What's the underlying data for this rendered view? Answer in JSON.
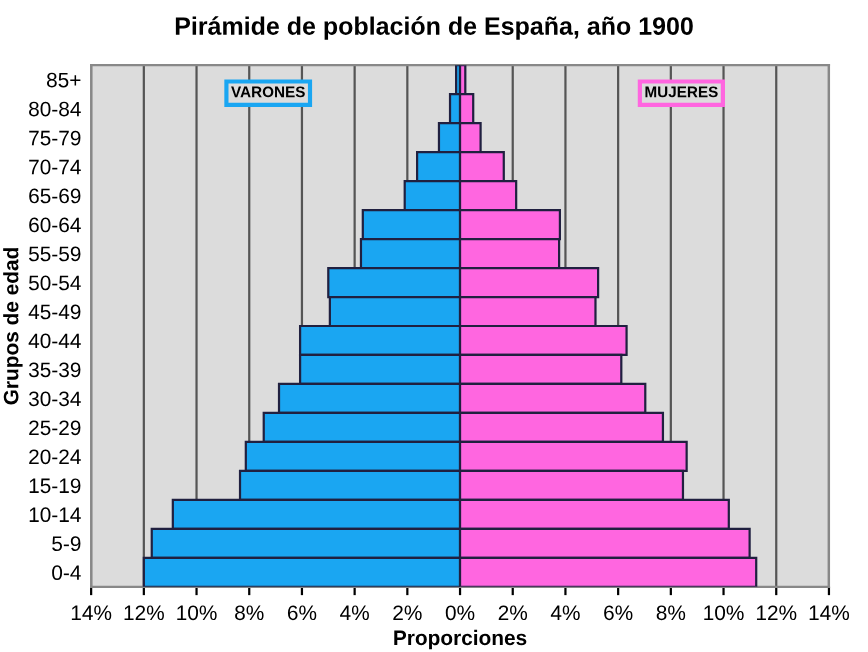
{
  "chart_data": {
    "type": "bar",
    "orientation": "horizontal",
    "title": "Pirámide de población de España, año 1900",
    "xlabel": "Proporciones",
    "ylabel": "Grupos de edad",
    "categories": [
      "85+",
      "80-84",
      "75-79",
      "70-74",
      "65-69",
      "60-64",
      "55-59",
      "50-54",
      "45-49",
      "40-44",
      "35-39",
      "30-34",
      "25-29",
      "20-24",
      "15-19",
      "10-14",
      "5-9",
      "0-4"
    ],
    "series": [
      {
        "name": "VARONES",
        "color": "#1aa6f2",
        "values": [
          -0.15,
          -0.38,
          -0.8,
          -1.63,
          -2.1,
          -3.69,
          -3.76,
          -5.0,
          -4.94,
          -6.07,
          -6.07,
          -6.87,
          -7.45,
          -8.13,
          -8.35,
          -10.9,
          -11.7,
          -12.0
        ]
      },
      {
        "name": "MUJERES",
        "color": "#ff66e0",
        "values": [
          0.2,
          0.5,
          0.78,
          1.66,
          2.13,
          3.79,
          3.76,
          5.24,
          5.14,
          6.32,
          6.12,
          7.03,
          7.7,
          8.6,
          8.46,
          10.2,
          10.99,
          11.24
        ]
      }
    ],
    "xlim": [
      -14,
      14
    ],
    "xticks": [
      {
        "value": -14,
        "label": "14%"
      },
      {
        "value": -12,
        "label": "12%"
      },
      {
        "value": -10,
        "label": "10%"
      },
      {
        "value": -8,
        "label": "8%"
      },
      {
        "value": -6,
        "label": "6%"
      },
      {
        "value": -4,
        "label": "4%"
      },
      {
        "value": -2,
        "label": "2%"
      },
      {
        "value": 0,
        "label": "0%"
      },
      {
        "value": 2,
        "label": "2%"
      },
      {
        "value": 4,
        "label": "4%"
      },
      {
        "value": 6,
        "label": "6%"
      },
      {
        "value": 8,
        "label": "8%"
      },
      {
        "value": 10,
        "label": "10%"
      },
      {
        "value": 12,
        "label": "12%"
      },
      {
        "value": 14,
        "label": "14%"
      }
    ],
    "grid": "x",
    "legend": false,
    "stacked": true
  }
}
